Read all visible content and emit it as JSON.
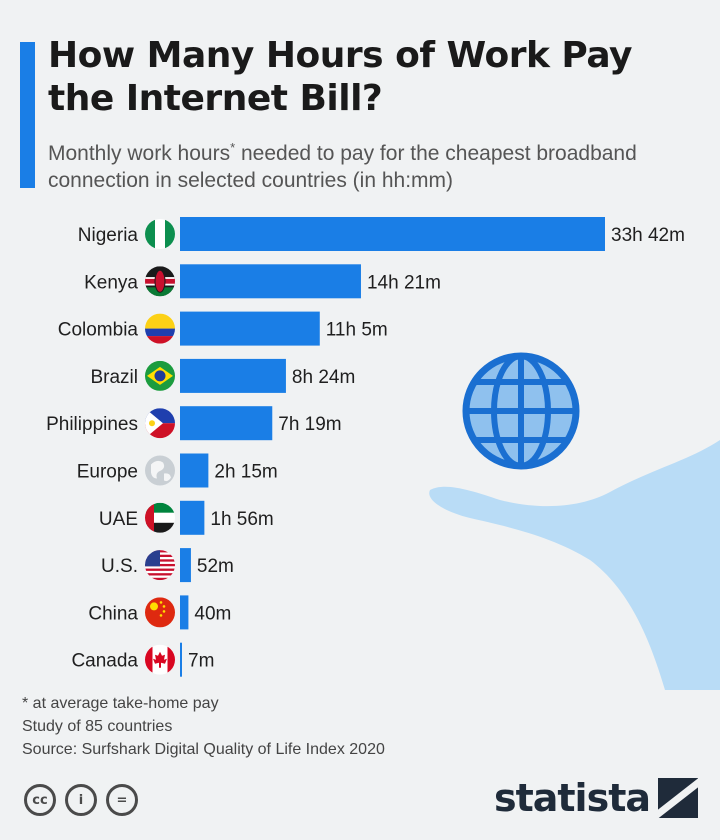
{
  "header": {
    "title": "How Many Hours of Work Pay the Internet Bill?",
    "subtitle_before": "Monthly work hours",
    "subtitle_mark": "*",
    "subtitle_after": " needed to pay for the cheapest broadband connection in selected countries (in hh:mm)"
  },
  "colors": {
    "accent": "#1a7ee6",
    "bar": "#1a7ee6",
    "illustration": "#b9dcf6",
    "text": "#1f1f1f"
  },
  "chart_data": {
    "type": "bar",
    "orientation": "horizontal",
    "title": "How Many Hours of Work Pay the Internet Bill?",
    "unit": "hh:mm",
    "categories": [
      "Nigeria",
      "Kenya",
      "Colombia",
      "Brazil",
      "Philippines",
      "Europe",
      "UAE",
      "U.S.",
      "China",
      "Canada"
    ],
    "values_hours": [
      33.7,
      14.35,
      11.083,
      8.4,
      7.317,
      2.25,
      1.933,
      0.867,
      0.667,
      0.117
    ],
    "labels": [
      "33h 42m",
      "14h 21m",
      "11h 5m",
      "8h 24m",
      "7h 19m",
      "2h 15m",
      "1h 56m",
      "52m",
      "40m",
      "7m"
    ],
    "flags": [
      "nigeria-flag-icon",
      "kenya-flag-icon",
      "colombia-flag-icon",
      "brazil-flag-icon",
      "philippines-flag-icon",
      "europe-globe-icon",
      "uae-flag-icon",
      "us-flag-icon",
      "china-flag-icon",
      "canada-flag-icon"
    ],
    "xlim": [
      0,
      33.7
    ],
    "grid": false,
    "legend": "none"
  },
  "footer": {
    "notes": [
      "* at average take-home pay",
      "Study of 85 countries",
      "Source: Surfshark Digital Quality of Life Index 2020"
    ],
    "cc_icons": [
      "cc",
      "i",
      "="
    ],
    "brand": "statista"
  }
}
